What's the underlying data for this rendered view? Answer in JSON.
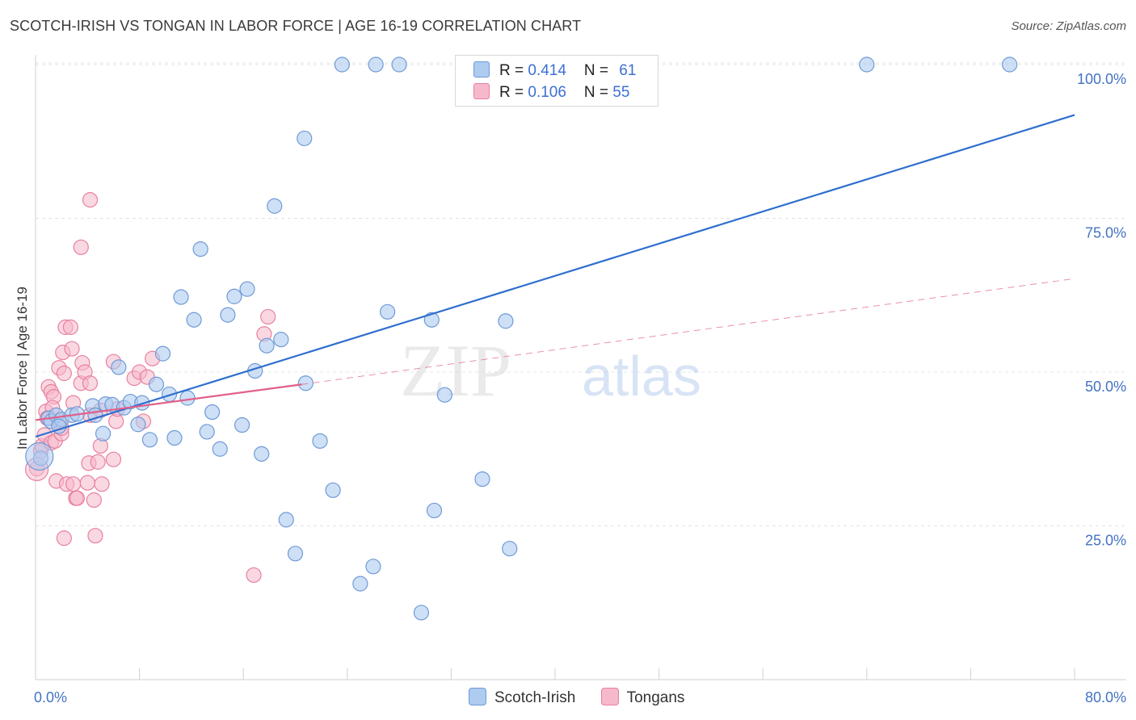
{
  "title": "SCOTCH-IRISH VS TONGAN IN LABOR FORCE | AGE 16-19 CORRELATION CHART",
  "source": "Source: ZipAtlas.com",
  "watermark": {
    "zip": "ZIP",
    "atlas": "atlas"
  },
  "legend": {
    "rows": [
      {
        "r_label": "R = ",
        "r_value": "0.414",
        "n_label": "N = ",
        "n_value": "61"
      },
      {
        "r_label": "R = ",
        "r_value": "0.106",
        "n_label": "N = ",
        "n_value": "55"
      }
    ]
  },
  "colors": {
    "blue_fill": "#aecbf0",
    "blue_stroke": "#6f9ad6",
    "blue_line": "#2f6fcf",
    "pink_fill": "#f6b8cb",
    "pink_stroke": "#e8809f",
    "pink_line": "#e0608a"
  },
  "chart_data": {
    "type": "scatter",
    "title": "SCOTCH-IRISH VS TONGAN IN LABOR FORCE | AGE 16-19 CORRELATION CHART",
    "ylabel": "In Labor Force | Age 16-19",
    "xlim": [
      0,
      80
    ],
    "ylim": [
      0,
      102
    ],
    "y_ticks": [
      {
        "value": 25,
        "label": "25.0%"
      },
      {
        "value": 50,
        "label": "50.0%"
      },
      {
        "value": 75,
        "label": "75.0%"
      },
      {
        "value": 100,
        "label": "100.0%"
      }
    ],
    "x_tick_labels": {
      "min": "0.0%",
      "max": "80.0%"
    },
    "x_ticks": [
      0,
      8,
      16,
      24,
      32,
      40,
      48,
      56,
      64,
      72,
      80
    ],
    "series": [
      {
        "name": "Scotch-Irish",
        "r": 0.414,
        "n": 61,
        "trend": {
          "x0": 0,
          "y0": 39.5,
          "x1": 80,
          "y1": 91.8
        },
        "points": [
          [
            0.4,
            36.0
          ],
          [
            1.0,
            42.5
          ],
          [
            1.2,
            42.0
          ],
          [
            1.6,
            43.0
          ],
          [
            2.0,
            42.3
          ],
          [
            2.8,
            43.0
          ],
          [
            3.2,
            43.2
          ],
          [
            4.4,
            44.5
          ],
          [
            4.6,
            43.0
          ],
          [
            5.2,
            40.0
          ],
          [
            5.4,
            44.8
          ],
          [
            5.9,
            44.7
          ],
          [
            6.4,
            50.8
          ],
          [
            6.8,
            44.2
          ],
          [
            7.3,
            45.2
          ],
          [
            7.9,
            41.5
          ],
          [
            8.2,
            45.0
          ],
          [
            8.8,
            39.0
          ],
          [
            9.3,
            48.0
          ],
          [
            9.8,
            53.0
          ],
          [
            10.3,
            46.4
          ],
          [
            10.7,
            39.3
          ],
          [
            11.2,
            62.2
          ],
          [
            11.7,
            45.8
          ],
          [
            12.2,
            58.5
          ],
          [
            12.7,
            70.0
          ],
          [
            13.2,
            40.3
          ],
          [
            13.6,
            43.5
          ],
          [
            14.2,
            37.5
          ],
          [
            14.8,
            59.3
          ],
          [
            15.3,
            62.3
          ],
          [
            15.9,
            41.4
          ],
          [
            16.3,
            63.5
          ],
          [
            16.9,
            50.2
          ],
          [
            17.4,
            36.7
          ],
          [
            17.8,
            54.3
          ],
          [
            18.4,
            77.0
          ],
          [
            18.9,
            55.3
          ],
          [
            19.3,
            26.0
          ],
          [
            20.0,
            20.5
          ],
          [
            20.7,
            88.0
          ],
          [
            20.8,
            48.2
          ],
          [
            21.9,
            38.8
          ],
          [
            22.9,
            30.8
          ],
          [
            23.6,
            100.0
          ],
          [
            25.0,
            15.6
          ],
          [
            26.0,
            18.4
          ],
          [
            26.2,
            100.0
          ],
          [
            27.1,
            59.8
          ],
          [
            28.0,
            100.0
          ],
          [
            29.7,
            10.9
          ],
          [
            30.5,
            58.5
          ],
          [
            30.7,
            27.5
          ],
          [
            31.5,
            46.3
          ],
          [
            33.0,
            100.0
          ],
          [
            34.4,
            32.6
          ],
          [
            36.2,
            58.3
          ],
          [
            36.5,
            21.3
          ],
          [
            64.0,
            100.0
          ],
          [
            75.0,
            100.0
          ],
          [
            1.8,
            41.2
          ]
        ]
      },
      {
        "name": "Tongans",
        "r": 0.106,
        "n": 55,
        "trend": {
          "x0": 0,
          "y0": 42.2,
          "x1": 20.5,
          "y1": 48.0
        },
        "trend_dashed": {
          "x0": 20.5,
          "y0": 48.0,
          "x1": 80,
          "y1": 65.2
        },
        "points": [
          [
            0.1,
            34.3
          ],
          [
            0.4,
            37.2
          ],
          [
            0.5,
            38.0
          ],
          [
            0.7,
            39.8
          ],
          [
            0.8,
            43.6
          ],
          [
            0.9,
            42.5
          ],
          [
            1.0,
            47.6
          ],
          [
            1.2,
            46.8
          ],
          [
            1.2,
            38.5
          ],
          [
            1.4,
            46.0
          ],
          [
            1.5,
            38.8
          ],
          [
            1.6,
            32.3
          ],
          [
            1.8,
            50.7
          ],
          [
            1.8,
            42.1
          ],
          [
            2.0,
            40.0
          ],
          [
            2.0,
            40.9
          ],
          [
            2.1,
            53.2
          ],
          [
            2.2,
            49.8
          ],
          [
            2.2,
            23.0
          ],
          [
            2.3,
            57.3
          ],
          [
            2.4,
            31.8
          ],
          [
            2.7,
            57.3
          ],
          [
            2.8,
            53.8
          ],
          [
            2.9,
            45.0
          ],
          [
            2.9,
            31.8
          ],
          [
            3.1,
            29.5
          ],
          [
            3.2,
            29.5
          ],
          [
            3.5,
            70.3
          ],
          [
            3.5,
            48.2
          ],
          [
            3.6,
            51.5
          ],
          [
            3.8,
            50.0
          ],
          [
            4.0,
            32.0
          ],
          [
            4.1,
            35.2
          ],
          [
            4.2,
            43.0
          ],
          [
            4.2,
            48.2
          ],
          [
            4.5,
            29.2
          ],
          [
            4.6,
            23.4
          ],
          [
            4.8,
            35.4
          ],
          [
            5.0,
            43.8
          ],
          [
            5.0,
            38.0
          ],
          [
            5.1,
            31.8
          ],
          [
            4.2,
            78.0
          ],
          [
            6.0,
            35.8
          ],
          [
            6.0,
            51.7
          ],
          [
            6.2,
            42.0
          ],
          [
            6.3,
            44.0
          ],
          [
            7.6,
            49.0
          ],
          [
            8.0,
            50.0
          ],
          [
            8.3,
            42.0
          ],
          [
            8.6,
            49.2
          ],
          [
            9.0,
            52.2
          ],
          [
            16.8,
            17.0
          ],
          [
            17.6,
            56.2
          ],
          [
            17.9,
            59.0
          ],
          [
            1.3,
            44.2
          ]
        ]
      }
    ]
  }
}
